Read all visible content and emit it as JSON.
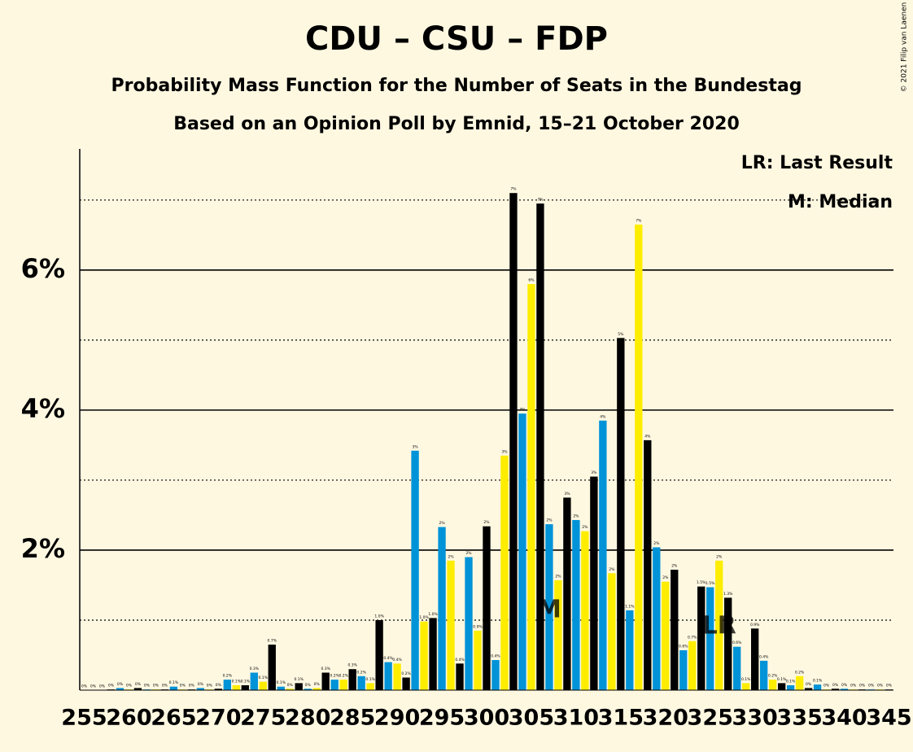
{
  "chart_data": {
    "type": "bar",
    "title": "CDU – CSU – FDP",
    "subtitle": "Probability Mass Function for the Number of Seats in the Bundestag",
    "subtitle2": "Based on an Opinion Poll by Emnid, 15–21 October 2020",
    "copyright": "© 2021 Filip van Laenen",
    "notes": [
      "LR: Last Result",
      "M: Median"
    ],
    "x": [
      255,
      256,
      257,
      258,
      259,
      260,
      261,
      262,
      263,
      264,
      265,
      266,
      267,
      268,
      269,
      270,
      271,
      272,
      273,
      274,
      275,
      276,
      277,
      278,
      279,
      280,
      281,
      282,
      283,
      284,
      285,
      286,
      287,
      288,
      289,
      290,
      291,
      292,
      293,
      294,
      295,
      296,
      297,
      298,
      299,
      300,
      301,
      302,
      303,
      304,
      305,
      306,
      307,
      308,
      309,
      310,
      311,
      312,
      313,
      314,
      315,
      316,
      317,
      318,
      319,
      320,
      321,
      322,
      323,
      324,
      325,
      326,
      327,
      328,
      329,
      330,
      331,
      332,
      333,
      334,
      335,
      336,
      337,
      338,
      339,
      340,
      341,
      342,
      343,
      344,
      345
    ],
    "values": [
      0,
      0,
      0,
      0.01,
      0.03,
      0.01,
      0.03,
      0.01,
      0.01,
      0.01,
      0.05,
      0.01,
      0.01,
      0.03,
      0.01,
      0.02,
      0.15,
      0.07,
      0.07,
      0.25,
      0.12,
      0.65,
      0.05,
      0.02,
      0.1,
      0.02,
      0.03,
      0.25,
      0.15,
      0.15,
      0.3,
      0.2,
      0.1,
      1.0,
      0.4,
      0.38,
      0.18,
      3.42,
      0.98,
      1.03,
      2.33,
      1.85,
      0.38,
      1.9,
      0.85,
      2.34,
      0.43,
      3.35,
      7.1,
      3.95,
      5.8,
      6.95,
      2.37,
      1.57,
      2.75,
      2.43,
      2.27,
      3.05,
      3.85,
      1.67,
      5.03,
      1.14,
      6.65,
      3.57,
      2.04,
      1.55,
      1.72,
      0.57,
      0.7,
      1.48,
      1.47,
      1.85,
      1.32,
      0.62,
      0.1,
      0.88,
      0.42,
      0.15,
      0.1,
      0.07,
      0.2,
      0.03,
      0.08,
      0.01,
      0.02,
      0.02,
      0.01,
      0.01,
      0.01,
      0.01,
      0.01
    ],
    "value_labels": [
      "0%",
      "0%",
      "0%",
      "0%",
      "0%",
      "0%",
      "0%",
      "0%",
      "0%",
      "0%",
      "0.1%",
      "0%",
      "0%",
      "0%",
      "0%",
      "0%",
      "0.2%",
      "0.1%",
      "0.1%",
      "0.3%",
      "0.1%",
      "0.7%",
      "0.1%",
      "0%",
      "0.1%",
      "0%",
      "0%",
      "0.3%",
      "0.2%",
      "0.2%",
      "0.3%",
      "0.2%",
      "0.1%",
      "1.0%",
      "0.4%",
      "0.4%",
      "0.2%",
      "3%",
      "1.0%",
      "1.0%",
      "2%",
      "2%",
      "0.4%",
      "2%",
      "0.9%",
      "2%",
      "0.4%",
      "3%",
      "7%",
      "4%",
      "6%",
      "7%",
      "2%",
      "2%",
      "3%",
      "2%",
      "2%",
      "3%",
      "4%",
      "2%",
      "5%",
      "1.1%",
      "7%",
      "4%",
      "2%",
      "2%",
      "2%",
      "0.6%",
      "0.7%",
      "1.5%",
      "1.5%",
      "2%",
      "1.3%",
      "0.6%",
      "0.1%",
      "0.9%",
      "0.4%",
      "0.2%",
      "0.1%",
      "0.1%",
      "0.2%",
      "0%",
      "0.1%",
      "0%",
      "0%",
      "0%",
      "0%",
      "0%",
      "0%",
      "0%",
      "0%"
    ],
    "colors": [
      "#000000",
      "#0093d8",
      "#ffed00"
    ],
    "xlim": [
      254.5,
      345.5
    ],
    "xticks": [
      255,
      260,
      265,
      270,
      275,
      280,
      285,
      290,
      295,
      300,
      305,
      310,
      315,
      320,
      325,
      330,
      335,
      340,
      345
    ],
    "ylim": [
      0,
      7.73
    ],
    "yticks": [
      {
        "value": 2,
        "label": "2%"
      },
      {
        "value": 4,
        "label": "4%"
      },
      {
        "value": 6,
        "label": "6%"
      }
    ],
    "minor_yticks": [
      1,
      3,
      5,
      7
    ],
    "grid": true,
    "markers": [
      {
        "label": "M",
        "x": 307
      },
      {
        "label": "LR",
        "x": 326
      }
    ]
  }
}
